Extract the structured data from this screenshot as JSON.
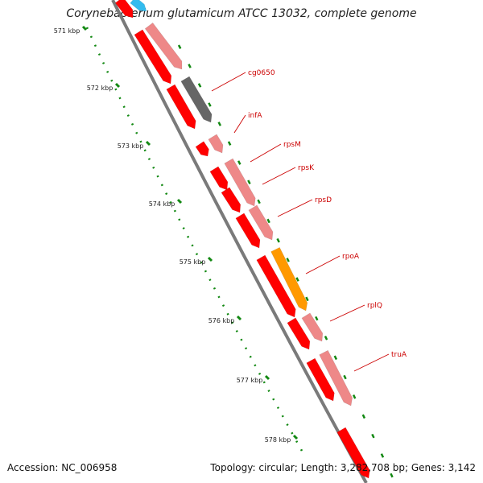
{
  "title": "Corynebacterium glutamicum ATCC 13032, complete genome",
  "footer": {
    "accession": "Accession: NC_006958",
    "topology": "Topology: circular; Length: 3,282,708 bp; Genes: 3,142"
  },
  "ticks": [
    "571 kbp",
    "572 kbp",
    "573 kbp",
    "574 kbp",
    "575 kbp",
    "576 kbp",
    "577 kbp",
    "578 kbp"
  ],
  "genes": [
    {
      "name": "cg0650",
      "color": "#666666"
    },
    {
      "name": "infA",
      "color": "#ee8888"
    },
    {
      "name": "rpsM",
      "color": "#ee8888"
    },
    {
      "name": "rpsK",
      "color": "#ee8888"
    },
    {
      "name": "rpsD",
      "color": "#ee8888"
    },
    {
      "name": "rpoA",
      "color": "#ff9900"
    },
    {
      "name": "rplQ",
      "color": "#ee8888"
    },
    {
      "name": "truA",
      "color": "#ee8888"
    }
  ],
  "colors": {
    "cds": "#ff0000",
    "gene_default": "#ee8888",
    "backbone": "#808080",
    "tick_marks": "#118811",
    "label": "#cc0000",
    "highlight": "#33bbee"
  }
}
